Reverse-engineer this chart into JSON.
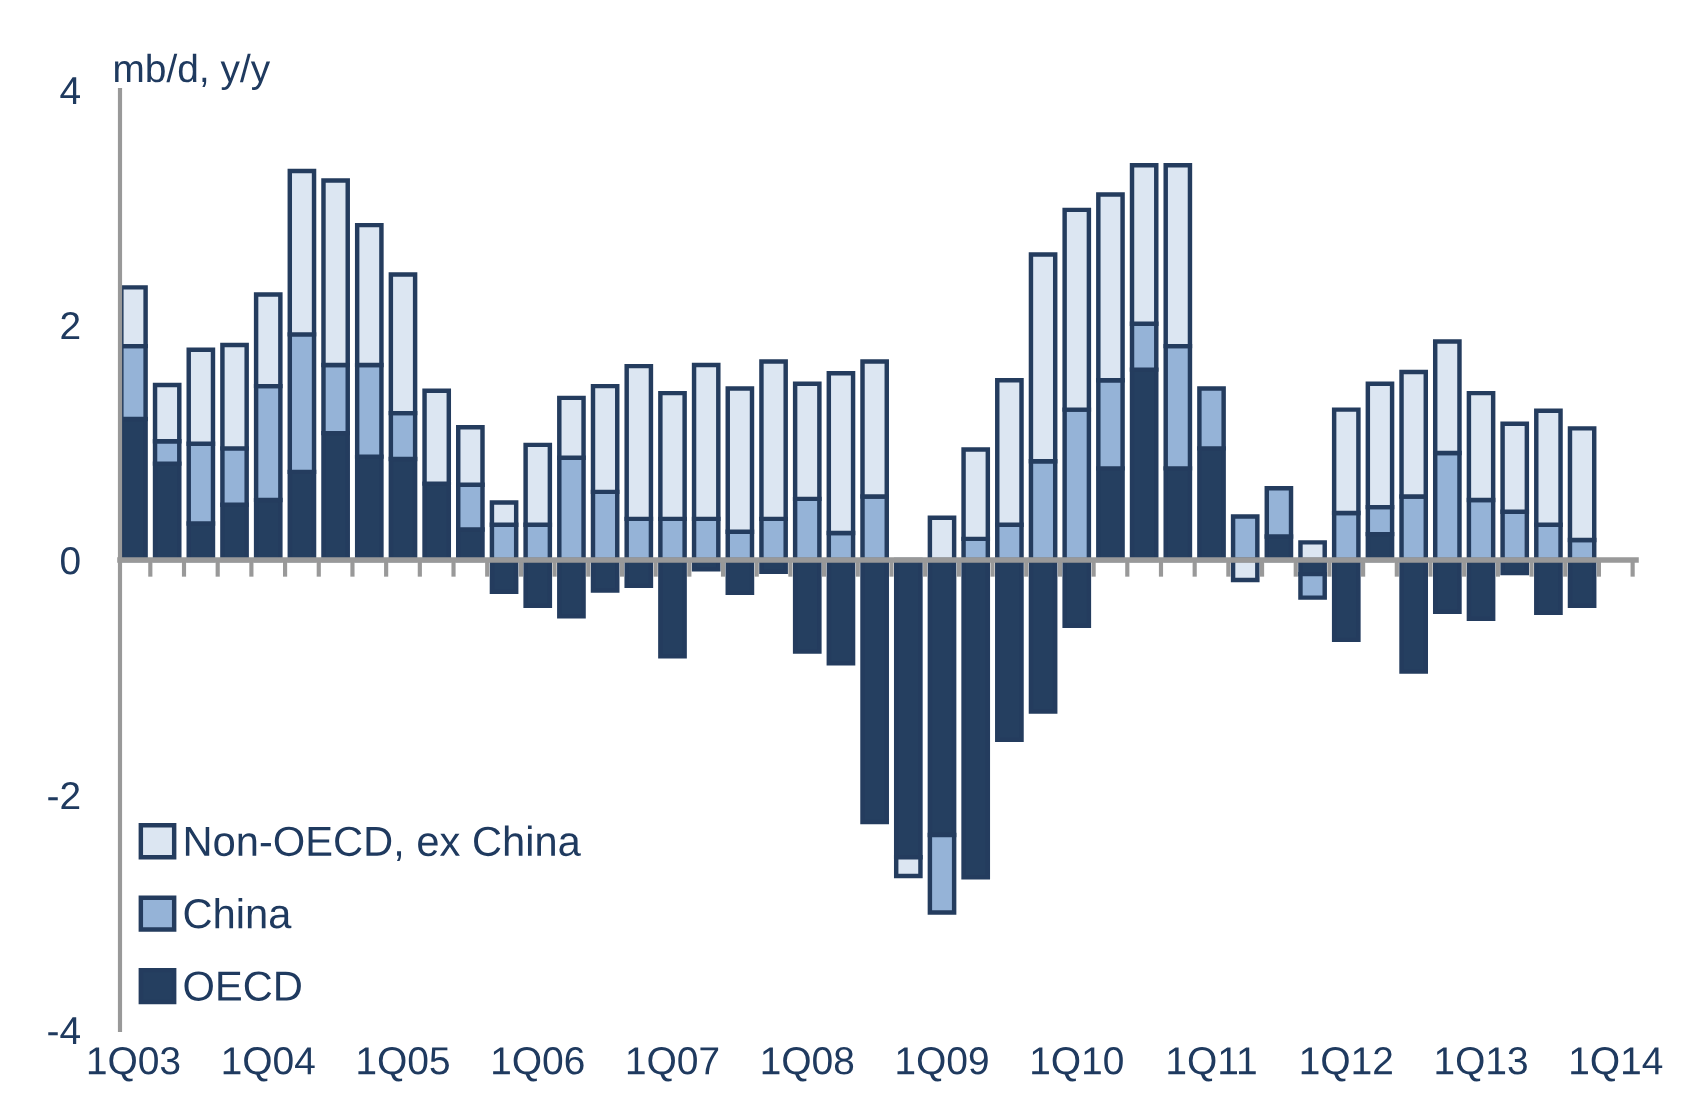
{
  "chart_data": {
    "type": "bar",
    "stacked": true,
    "ylabel": "mb/d, y/y",
    "categories": [
      "1Q03",
      null,
      null,
      null,
      "1Q04",
      null,
      null,
      null,
      "1Q05",
      null,
      null,
      null,
      "1Q06",
      null,
      null,
      null,
      "1Q07",
      null,
      null,
      null,
      "1Q08",
      null,
      null,
      null,
      "1Q09",
      null,
      null,
      null,
      "1Q10",
      null,
      null,
      null,
      "1Q11",
      null,
      null,
      null,
      "1Q12",
      null,
      null,
      null,
      "1Q13",
      null,
      null,
      null,
      "1Q14"
    ],
    "series": [
      {
        "name": "OECD",
        "color": "#253f60",
        "values": [
          1.2,
          0.82,
          0.31,
          0.47,
          0.51,
          0.75,
          1.08,
          0.88,
          0.86,
          0.65,
          0.26,
          -0.27,
          -0.39,
          -0.48,
          -0.26,
          -0.22,
          -0.82,
          -0.08,
          -0.28,
          -0.1,
          -0.78,
          -0.88,
          -2.23,
          -2.53,
          -2.34,
          -2.7,
          -1.53,
          -1.29,
          -0.56,
          0.78,
          1.62,
          0.78,
          0.95,
          null,
          0.2,
          -0.12,
          -0.68,
          0.22,
          -0.95,
          -0.44,
          -0.5,
          -0.11,
          -0.45,
          -0.39,
          null
        ]
      },
      {
        "name": "China",
        "color": "#95b3d7",
        "values": [
          0.62,
          0.19,
          0.68,
          0.48,
          0.97,
          1.17,
          0.58,
          0.78,
          0.39,
          null,
          0.38,
          0.3,
          0.3,
          0.87,
          0.58,
          0.35,
          0.35,
          0.35,
          0.24,
          0.35,
          0.52,
          0.23,
          0.54,
          null,
          -0.66,
          0.18,
          0.3,
          0.84,
          1.28,
          0.75,
          0.39,
          1.04,
          0.51,
          0.37,
          0.41,
          -0.2,
          0.4,
          0.23,
          0.54,
          0.91,
          0.51,
          0.41,
          0.3,
          0.17,
          null
        ]
      },
      {
        "name": "Non-OECD, ex China",
        "color": "#dce6f2",
        "values": [
          0.5,
          0.48,
          0.8,
          0.88,
          0.78,
          1.39,
          1.57,
          1.19,
          1.18,
          0.79,
          0.49,
          0.19,
          0.68,
          0.51,
          0.9,
          1.3,
          1.07,
          1.31,
          1.22,
          1.34,
          0.98,
          1.36,
          1.15,
          -0.16,
          0.36,
          0.76,
          1.23,
          1.76,
          1.7,
          1.58,
          1.35,
          1.54,
          null,
          -0.17,
          null,
          0.15,
          0.88,
          1.05,
          1.06,
          0.95,
          0.91,
          0.75,
          0.97,
          0.95,
          null
        ]
      }
    ],
    "ylim": [
      -4,
      4
    ],
    "yticks": [
      -4,
      -2,
      0,
      2,
      4
    ],
    "legend": "bottom left"
  }
}
